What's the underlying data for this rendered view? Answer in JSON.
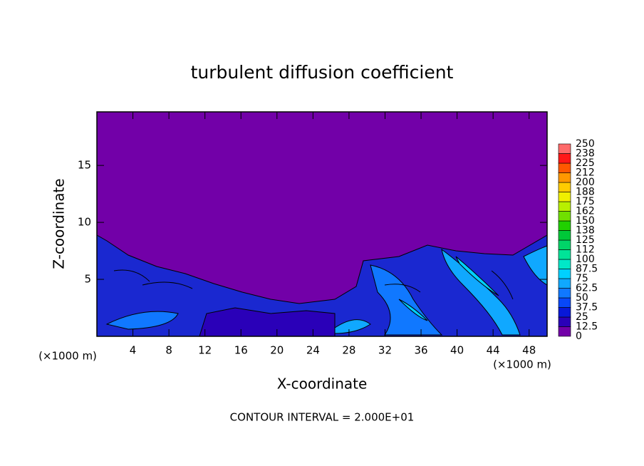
{
  "chart_data": {
    "type": "contour",
    "title": "turbulent diffusion coefficient",
    "x_label": "X-coordinate",
    "y_label": "Z-coordinate",
    "x_unit_label": "(×1000 m)",
    "annotation": "CONTOUR INTERVAL = 2.000E+01",
    "xlim": [
      0,
      50
    ],
    "ylim": [
      0,
      19.7
    ],
    "xticks": [
      4,
      8,
      12,
      16,
      20,
      24,
      28,
      32,
      36,
      40,
      44,
      48
    ],
    "yticks": [
      5,
      10,
      15
    ],
    "colorbar": {
      "levels": [
        0,
        12.5,
        25,
        37.5,
        50,
        62.5,
        75,
        87.5,
        100,
        112,
        125,
        138,
        150,
        162,
        175,
        188,
        200,
        212,
        225,
        238,
        250
      ],
      "colors": [
        "#7200a8",
        "#2a00b8",
        "#0818d8",
        "#0848f8",
        "#1078ff",
        "#10a8ff",
        "#00d0ff",
        "#00e8c8",
        "#00e498",
        "#00d468",
        "#00c838",
        "#20d000",
        "#70e000",
        "#b8f000",
        "#f0f000",
        "#ffcc00",
        "#ff9800",
        "#ff5800",
        "#ff1818",
        "#ff6a6a"
      ]
    }
  }
}
